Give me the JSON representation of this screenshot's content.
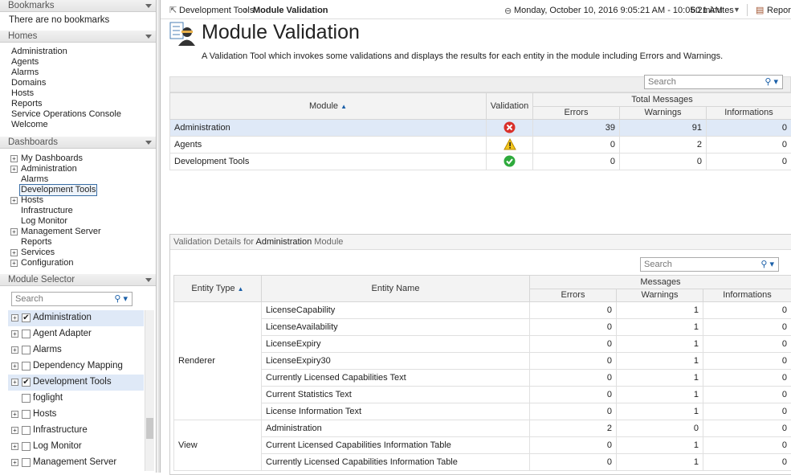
{
  "sidebar": {
    "bookmarks": {
      "title": "Bookmarks",
      "empty": "There are no bookmarks"
    },
    "homes": {
      "title": "Homes",
      "items": [
        "Administration",
        "Agents",
        "Alarms",
        "Domains",
        "Hosts",
        "Reports",
        "Service Operations Console",
        "Welcome"
      ]
    },
    "dashboards": {
      "title": "Dashboards",
      "items": [
        "My Dashboards",
        "Administration",
        "Alarms",
        "Development Tools",
        "Hosts",
        "Infrastructure",
        "Log Monitor",
        "Management Server",
        "Reports",
        "Services",
        "Configuration"
      ]
    },
    "module_selector": {
      "title": "Module Selector",
      "search": "Search",
      "items": [
        "Administration",
        "Agent Adapter",
        "Alarms",
        "Dependency Mapping",
        "Development Tools",
        "foglight",
        "Hosts",
        "Infrastructure",
        "Log Monitor",
        "Management Server"
      ]
    }
  },
  "header": {
    "breadcrumb": "Development Tools",
    "current": "Module Validation",
    "time_range": "Monday, October 10, 2016 9:05:21 AM - 10:05:21 AM",
    "duration": "60 minutes",
    "reports": "Report"
  },
  "page": {
    "title": "Module Validation",
    "description": "A Validation Tool which invokes some validations and displays the results for each entity in the module including Errors and Warnings."
  },
  "summary_table": {
    "search": "Search",
    "headers": {
      "module": "Module",
      "validation": "Validation",
      "group": "Total Messages",
      "errors": "Errors",
      "warnings": "Warnings",
      "informations": "Informations"
    },
    "rows": [
      [
        "Administration",
        39,
        91,
        0
      ],
      [
        "Agents",
        0,
        2,
        0
      ],
      [
        "Development Tools",
        0,
        0,
        0
      ]
    ]
  },
  "details": {
    "title_prefix": "Validation Details for",
    "module": "Administration",
    "title_suffix": "Module",
    "search": "Search",
    "headers": {
      "entity_type": "Entity Type",
      "entity_name": "Entity Name",
      "group": "Messages",
      "errors": "Errors",
      "warnings": "Warnings",
      "informations": "Informations"
    },
    "groups": [
      {
        "type": "Renderer",
        "rows": [
          [
            "LicenseCapability",
            0,
            1,
            0
          ],
          [
            "LicenseAvailability",
            0,
            1,
            0
          ],
          [
            "LicenseExpiry",
            0,
            1,
            0
          ],
          [
            "LicenseExpiry30",
            0,
            1,
            0
          ],
          [
            "Currently Licensed Capabilities Text",
            0,
            1,
            0
          ],
          [
            "Current Statistics Text",
            0,
            1,
            0
          ],
          [
            "License Information Text",
            0,
            1,
            0
          ]
        ]
      },
      {
        "type": "View",
        "rows": [
          [
            "Administration",
            2,
            0,
            0
          ],
          [
            "Current Licensed Capabilities Information Table",
            0,
            1,
            0
          ],
          [
            "Currently Licensed Capabilities Information Table",
            0,
            1,
            0
          ]
        ]
      }
    ]
  }
}
